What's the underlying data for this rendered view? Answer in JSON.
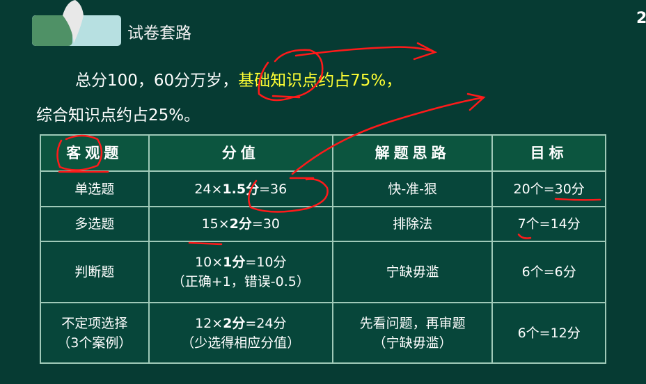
{
  "slide": {
    "title": "试卷套路",
    "page_number": "2",
    "para1_prefix": "总分100，60分万岁，",
    "para1_highlight": "基础知识点约占75%，",
    "para2": "综合知识点约占25%。"
  },
  "table": {
    "headers": [
      "客观题",
      "分值",
      "解题思路",
      "目标"
    ],
    "rows": [
      {
        "type": "单选题",
        "score_a": "24×",
        "score_b": "1.5分",
        "score_c": "=36",
        "score_note": "",
        "approach": "快-准-狠",
        "approach2": "",
        "goal": "20个=30分"
      },
      {
        "type": "多选题",
        "score_a": "15×",
        "score_b": "2分",
        "score_c": "=30",
        "score_note": "",
        "approach": "排除法",
        "approach2": "",
        "goal": "7个=14分"
      },
      {
        "type": "判断题",
        "score_a": "10×",
        "score_b": "1分",
        "score_c": "=10分",
        "score_note": "（正确+1，错误-0.5）",
        "approach": "宁缺毋滥",
        "approach2": "",
        "goal": "6个=6分"
      },
      {
        "type": "不定项选择",
        "type2": "（3个案例）",
        "score_a": "12×",
        "score_b": "2分",
        "score_c": "=24分",
        "score_note": "（少选得相应分值）",
        "approach": "先看问题，再审题",
        "approach2": "（宁缺毋滥）",
        "goal": "6个=12分"
      }
    ]
  },
  "colors": {
    "background": "#063b33",
    "header": "#0c553f",
    "highlight": "#ffff33",
    "annotation": "#ff1a1a"
  }
}
